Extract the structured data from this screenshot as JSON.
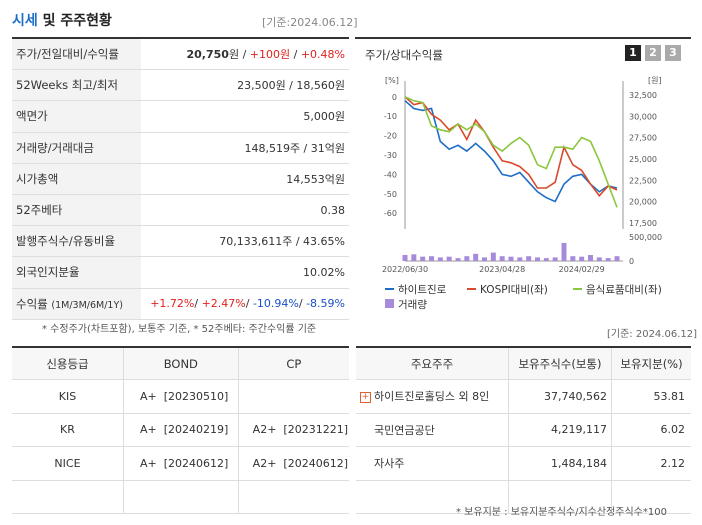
{
  "header": {
    "title_accent": "시세",
    "title_rest": " 및 주주현황",
    "date": "[기준:2024.06.12]"
  },
  "quote": {
    "rows": [
      {
        "label": "주가/전일대비/수익률"
      },
      {
        "label": "52Weeks 최고/최저",
        "value": "23,500원 / 18,560원"
      },
      {
        "label": "액면가",
        "value": "5,000원"
      },
      {
        "label": "거래량/거래대금",
        "value": "148,519주 / 31억원"
      },
      {
        "label": "시가총액",
        "value": "14,553억원"
      },
      {
        "label": "52주베타",
        "value": "0.38"
      },
      {
        "label": "발행주식수/유동비율",
        "value": "70,133,611주 / 43.65%"
      },
      {
        "label": "외국인지분율",
        "value": "10.02%"
      },
      {
        "label": "수익률",
        "sublabel": "(1M/3M/6M/1Y)"
      }
    ],
    "price": "20,750",
    "price_unit": "원",
    "change": "+100원",
    "change_pct": "+0.48%",
    "sep": " / ",
    "returns": [
      "+1.72%",
      "+2.47%",
      "-10.94%",
      "-8.59%"
    ],
    "note": "* 수정주가(차트포함), 보통주 기준, * 52주베타: 주간수익률 기준"
  },
  "chart_panel": {
    "title": "주가/상대수익률",
    "tabs": [
      "1",
      "2",
      "3"
    ],
    "active_tab": "1"
  },
  "chart_data": {
    "type": "line",
    "left_unit": "[%]",
    "right_unit": "[원]",
    "left_axis_ticks": [
      "0",
      "-10",
      "-20",
      "-30",
      "-40",
      "-50",
      "-60"
    ],
    "right_axis_ticks": [
      "32,500",
      "30,000",
      "27,500",
      "25,000",
      "22,500",
      "20,000",
      "17,500"
    ],
    "volume_axis_ticks": [
      "500,000",
      "0"
    ],
    "x_tick_labels": [
      "2022/06/30",
      "2023/04/28",
      "2024/02/29"
    ],
    "ylim_left": [
      -63,
      3
    ],
    "series": [
      {
        "name": "하이트진로",
        "color": "#1e6ec8",
        "values": [
          -2,
          -6,
          -7,
          -6,
          -23,
          -27,
          -25,
          -28,
          -24,
          -28,
          -33,
          -40,
          -41,
          -39,
          -44,
          -49,
          -52,
          -54,
          -45,
          -41,
          -40,
          -45,
          -49,
          -46,
          -47
        ]
      },
      {
        "name": "KOSPI대비(좌)",
        "color": "#d94a2b",
        "values": [
          0,
          -4,
          -3,
          -9,
          -12,
          -17,
          -14,
          -22,
          -12,
          -18,
          -26,
          -33,
          -34,
          -36,
          -40,
          -47,
          -47,
          -44,
          -26,
          -35,
          -38,
          -45,
          -51,
          -46,
          -48
        ]
      },
      {
        "name": "음식료품대비(좌)",
        "color": "#8cc63f",
        "values": [
          0,
          -2,
          -3,
          -15,
          -17,
          -18,
          -14,
          -17,
          -14,
          -18,
          -25,
          -28,
          -24,
          -21,
          -25,
          -35,
          -37,
          -26,
          -26,
          -27,
          -21,
          -23,
          -33,
          -45,
          -57
        ]
      }
    ],
    "volume": {
      "name": "거래량",
      "color": "#a78bdb",
      "values": [
        0.25,
        0.28,
        0.18,
        0.2,
        0.15,
        0.18,
        0.12,
        0.2,
        0.3,
        0.15,
        0.35,
        0.2,
        0.18,
        0.15,
        0.2,
        0.15,
        0.12,
        0.15,
        0.75,
        0.2,
        0.18,
        0.25,
        0.15,
        0.12,
        0.2
      ]
    }
  },
  "credit": {
    "headers": [
      "신용등급",
      "BOND",
      "CP"
    ],
    "rows": [
      {
        "agency": "KIS",
        "bond_grade": "A+",
        "bond_date": "[20230510]",
        "cp_grade": "",
        "cp_date": ""
      },
      {
        "agency": "KR",
        "bond_grade": "A+",
        "bond_date": "[20240219]",
        "cp_grade": "A2+",
        "cp_date": "[20231221]"
      },
      {
        "agency": "NICE",
        "bond_grade": "A+",
        "bond_date": "[20240612]",
        "cp_grade": "A2+",
        "cp_date": "[20240612]"
      }
    ]
  },
  "shareholders": {
    "date": "[기준: 2024.06.12]",
    "headers": [
      "주요주주",
      "보유주식수(보통)",
      "보유지분(%)"
    ],
    "rows": [
      {
        "name": "하이트진로홀딩스 외 8인",
        "shares": "37,740,562",
        "pct": "53.81",
        "expand": true
      },
      {
        "name": "국민연금공단",
        "shares": "4,219,117",
        "pct": "6.02",
        "expand": false
      },
      {
        "name": "자사주",
        "shares": "1,484,184",
        "pct": "2.12",
        "expand": false
      }
    ],
    "note": "* 보유지분 : 보유지분주식수/지수산정주식수*100"
  },
  "colors": {
    "up": "#e0211d",
    "down": "#1a4fc8",
    "accent": "#1e6ec8"
  },
  "icons": {
    "expand": "plus-icon"
  }
}
